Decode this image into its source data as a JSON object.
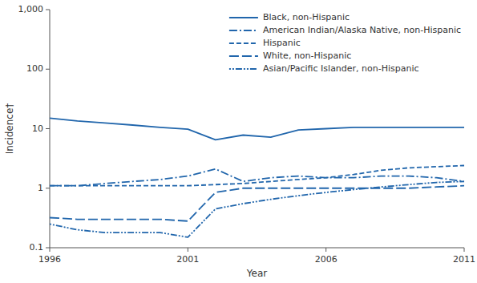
{
  "chart_data": {
    "type": "line",
    "x_label": "Year",
    "y_label": "Incidence†",
    "x": [
      1996,
      1997,
      1998,
      1999,
      2000,
      2001,
      2002,
      2003,
      2004,
      2005,
      2006,
      2007,
      2008,
      2009,
      2010,
      2011
    ],
    "series": [
      {
        "name": "Black, non-Hispanic",
        "line_style": "solid",
        "values": [
          15.0,
          13.5,
          12.5,
          11.5,
          10.5,
          9.8,
          6.5,
          7.8,
          7.2,
          9.5,
          10.0,
          10.5,
          10.5,
          10.5,
          10.5,
          10.5
        ]
      },
      {
        "name": "American Indian/Alaska Native, non-Hispanic",
        "line_style": "dashdot",
        "values": [
          1.1,
          1.1,
          1.2,
          1.3,
          1.4,
          1.6,
          2.1,
          1.3,
          1.5,
          1.6,
          1.5,
          1.5,
          1.6,
          1.6,
          1.5,
          1.3
        ]
      },
      {
        "name": "Hispanic",
        "line_style": "dashed",
        "values": [
          1.1,
          1.1,
          1.1,
          1.1,
          1.1,
          1.1,
          1.15,
          1.2,
          1.3,
          1.4,
          1.5,
          1.7,
          2.0,
          2.2,
          2.3,
          2.4
        ]
      },
      {
        "name": "White, non-Hispanic",
        "line_style": "longdash",
        "values": [
          0.32,
          0.3,
          0.3,
          0.3,
          0.3,
          0.28,
          0.85,
          1.0,
          1.0,
          1.0,
          1.0,
          1.0,
          1.0,
          1.0,
          1.05,
          1.1
        ]
      },
      {
        "name": "Asian/Pacific Islander, non-Hispanic",
        "line_style": "dashdotdot",
        "values": [
          0.25,
          0.2,
          0.18,
          0.18,
          0.18,
          0.15,
          0.45,
          0.55,
          0.65,
          0.75,
          0.85,
          0.95,
          1.05,
          1.15,
          1.25,
          1.3
        ]
      }
    ],
    "color": "#2166ac",
    "log": "y",
    "xlim": [
      1996,
      2011
    ],
    "xticks": [
      1996,
      2001,
      2006,
      2011
    ],
    "ylim": [
      0.1,
      1000
    ],
    "yticks": [
      0.1,
      1,
      10,
      100,
      {
        "value": 1000,
        "label": "1,000"
      }
    ],
    "legend": "upper right",
    "grid": false
  }
}
